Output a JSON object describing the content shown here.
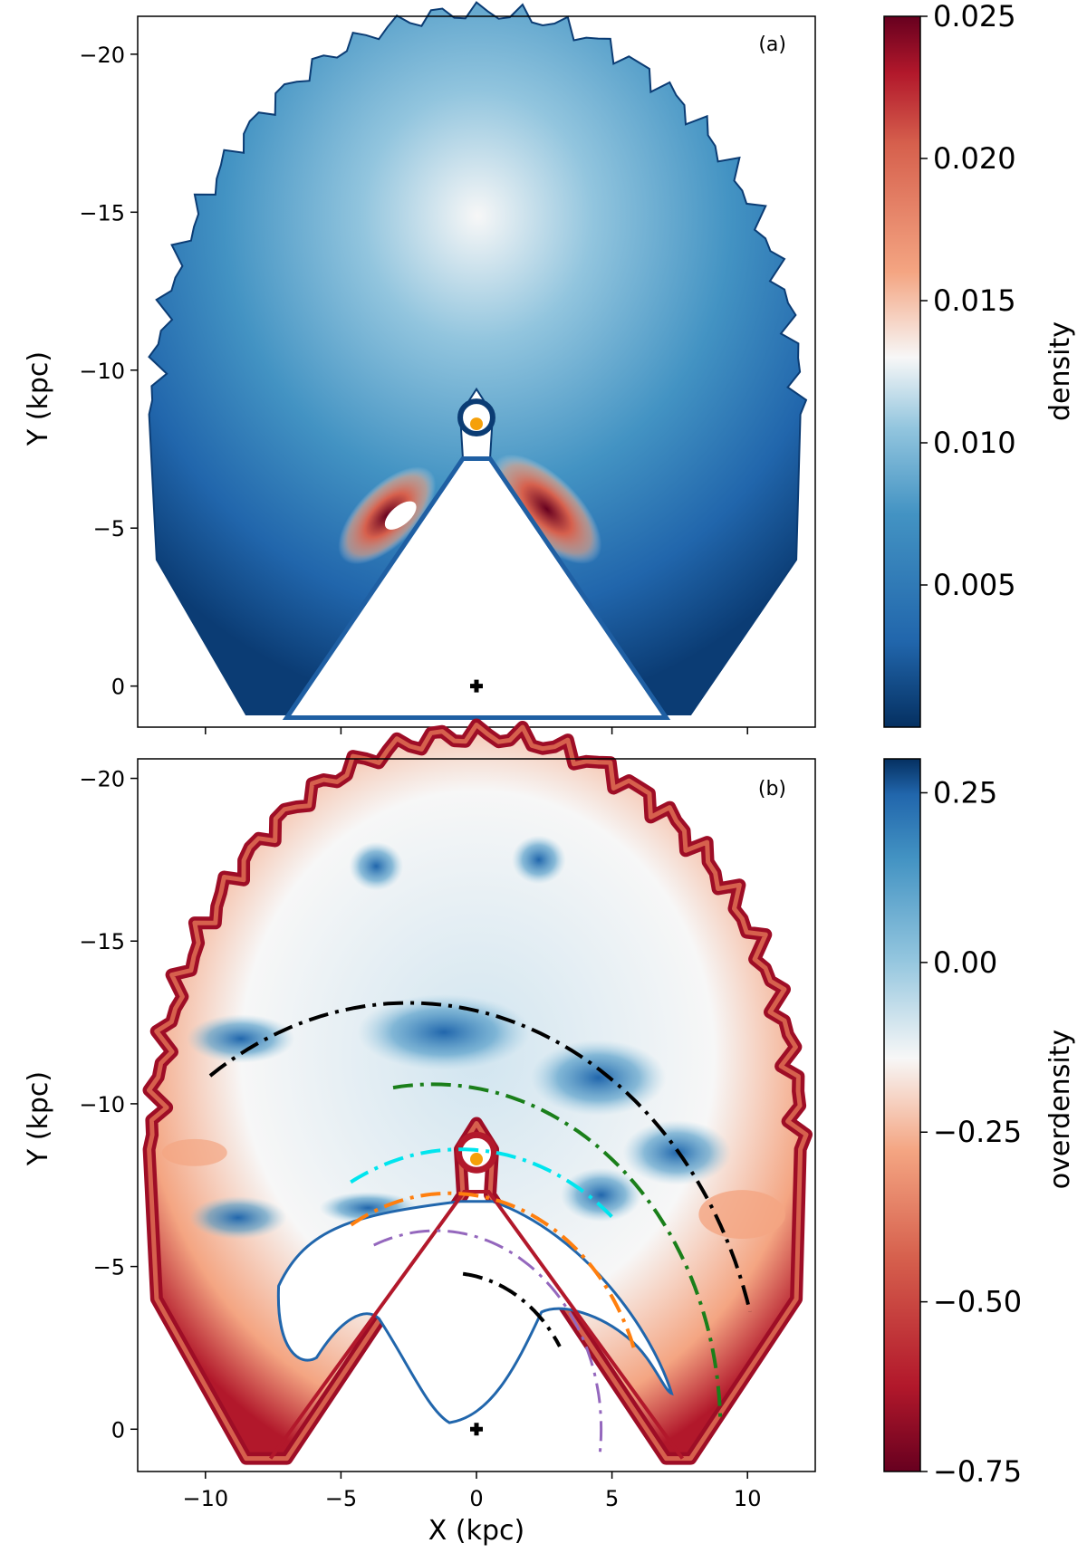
{
  "chart_data": [
    {
      "type": "heatmap",
      "panel_label": "(a)",
      "xlabel": "",
      "ylabel": "Y (kpc)",
      "xlim": [
        -12.5,
        12.5
      ],
      "ylim": [
        1.3,
        -21.2
      ],
      "x_ticks": [
        -10,
        -5,
        0,
        5,
        10
      ],
      "y_ticks": [
        -20,
        -15,
        -10,
        -5,
        0
      ],
      "y_tick_labels": [
        "−20",
        "−15",
        "−10",
        "−5",
        "0"
      ],
      "colorbar": {
        "label": "density",
        "colormap": "RdBu_r",
        "range": [
          0.0,
          0.025
        ],
        "ticks": [
          0.005,
          0.01,
          0.015,
          0.02,
          0.025
        ],
        "tick_labels": [
          "0.005",
          "0.010",
          "0.015",
          "0.020",
          "0.025"
        ]
      },
      "markers": [
        {
          "name": "Sun",
          "x": 0,
          "y": -8.3,
          "color": "#f5a00a"
        },
        {
          "name": "Galactic centre",
          "x": 0,
          "y": 0,
          "color": "#000000"
        }
      ]
    },
    {
      "type": "heatmap",
      "panel_label": "(b)",
      "xlabel": "X (kpc)",
      "ylabel": "Y (kpc)",
      "xlim": [
        -12.5,
        12.5
      ],
      "ylim": [
        1.3,
        -20.6
      ],
      "x_ticks": [
        -10,
        -5,
        0,
        5,
        10
      ],
      "x_tick_labels": [
        "−10",
        "−5",
        "0",
        "5",
        "10"
      ],
      "y_ticks": [
        -20,
        -15,
        -10,
        -5,
        0
      ],
      "y_tick_labels": [
        "−20",
        "−15",
        "−10",
        "−5",
        "0"
      ],
      "colorbar": {
        "label": "overdensity",
        "colormap": "RdBu",
        "range": [
          -0.75,
          0.3
        ],
        "ticks": [
          0.25,
          0.0,
          -0.25,
          -0.5,
          -0.75
        ],
        "tick_labels": [
          "0.25",
          "0.00",
          "−0.25",
          "−0.50",
          "−0.75"
        ]
      },
      "markers": [
        {
          "name": "Sun",
          "x": 0,
          "y": -8.3,
          "color": "#f5a00a"
        },
        {
          "name": "Galactic centre",
          "x": 0,
          "y": 0,
          "color": "#000000"
        }
      ],
      "arcs": [
        {
          "color": "#000000",
          "style": "solid then dash-dot",
          "center": [
            -2.5,
            0
          ],
          "radius": 13.1,
          "from_deg": 124,
          "to_deg": 16
        },
        {
          "color": "#1a7f1a",
          "style": "dash-dot",
          "center": [
            -1.6,
            0
          ],
          "radius": 10.6,
          "from_deg": 98,
          "to_deg": 2
        },
        {
          "color": "#00e5ee",
          "style": "dash-dot",
          "center": [
            -0.6,
            0
          ],
          "radius": 8.6,
          "from_deg": 118,
          "to_deg": 48
        },
        {
          "color": "#ff7f0e",
          "style": "dash-dot",
          "center": [
            -1.0,
            0
          ],
          "radius": 7.25,
          "from_deg": 120,
          "to_deg": 20
        },
        {
          "color": "#9467bd",
          "style": "dash-dot",
          "center": [
            -1.5,
            0
          ],
          "radius": 6.1,
          "from_deg": 112,
          "to_deg": -8
        },
        {
          "color": "#000000",
          "style": "dash-dot",
          "center": [
            -1.0,
            0
          ],
          "radius": 4.8,
          "from_deg": 84,
          "to_deg": 32
        }
      ]
    }
  ]
}
